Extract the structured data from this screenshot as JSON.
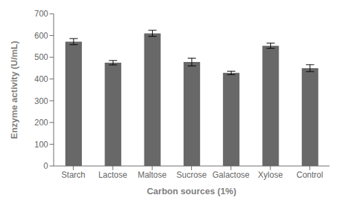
{
  "chart_data": {
    "type": "bar",
    "categories": [
      "Starch",
      "Lactose",
      "Maltose",
      "Sucrose",
      "Galactose",
      "Xylose",
      "Control"
    ],
    "values": [
      572,
      475,
      610,
      478,
      428,
      553,
      450
    ],
    "errors": [
      14,
      10,
      14,
      18,
      8,
      12,
      16
    ],
    "color": "#686868",
    "xlabel": "Carbon sources (1%)",
    "ylabel": "Enzyme activity (U/mL)",
    "ylim": [
      0,
      700
    ],
    "yticks": [
      0,
      100,
      200,
      300,
      400,
      500,
      600,
      700
    ],
    "grid": false
  }
}
